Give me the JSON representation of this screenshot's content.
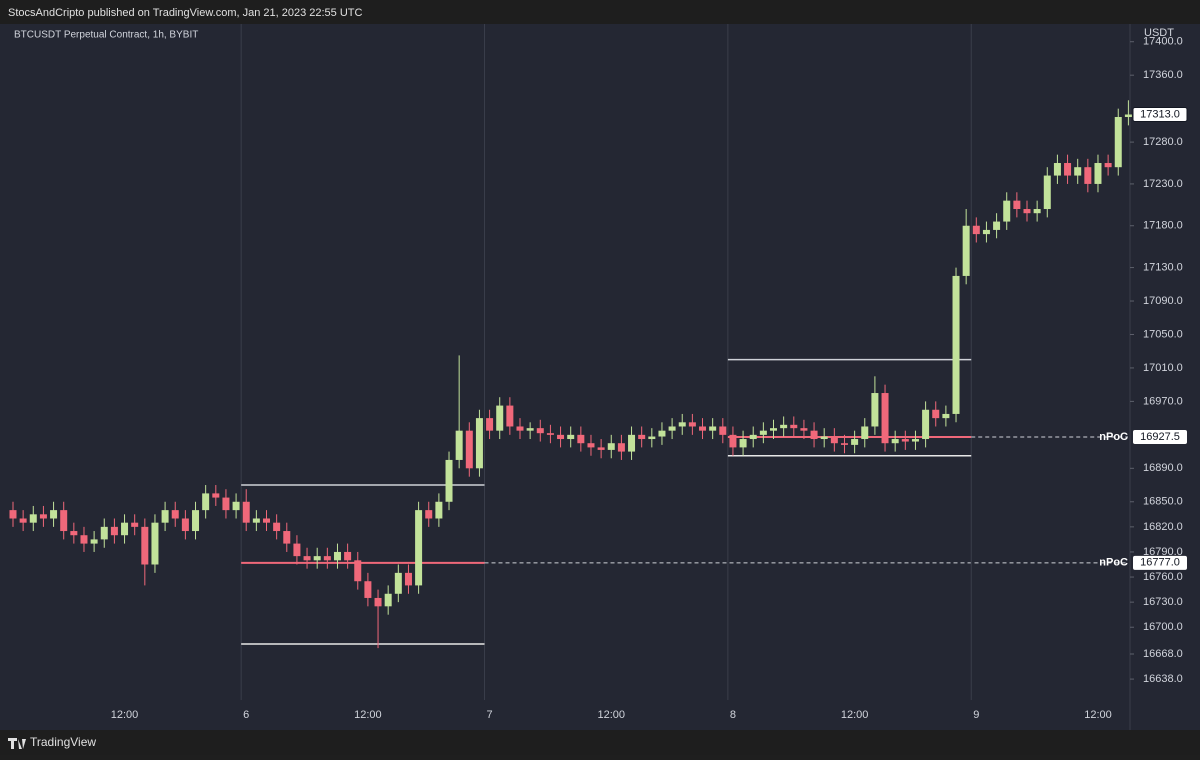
{
  "header": {
    "text": "StocsAndCripto published on TradingView.com, Jan 21, 2023 22:55 UTC"
  },
  "footer": {
    "brand": "TradingView"
  },
  "chart_data": {
    "type": "candlestick",
    "title": "BTCUSDT Perpetual Contract, 1h, BYBIT",
    "y_axis_label": "USDT",
    "categories": [
      null,
      null,
      null,
      null,
      null,
      null,
      null,
      null,
      null,
      null,
      null,
      "12:00",
      null,
      null,
      null,
      null,
      null,
      null,
      null,
      null,
      null,
      null,
      null,
      "6",
      null,
      null,
      null,
      null,
      null,
      null,
      null,
      null,
      null,
      null,
      null,
      "12:00",
      null,
      null,
      null,
      null,
      null,
      null,
      null,
      null,
      null,
      null,
      null,
      "7",
      null,
      null,
      null,
      null,
      null,
      null,
      null,
      null,
      null,
      null,
      null,
      "12:00",
      null,
      null,
      null,
      null,
      null,
      null,
      null,
      null,
      null,
      null,
      null,
      "8",
      null,
      null,
      null,
      null,
      null,
      null,
      null,
      null,
      null,
      null,
      null,
      "12:00",
      null,
      null,
      null,
      null,
      null,
      null,
      null,
      null,
      null,
      null,
      null,
      "9",
      null,
      null,
      null,
      null,
      null,
      null,
      null,
      null,
      null,
      null,
      null,
      "12:00",
      null,
      null,
      null
    ],
    "open": [
      16840,
      16830,
      16825,
      16835,
      16830,
      16840,
      16815,
      16810,
      16800,
      16805,
      16820,
      16810,
      16825,
      16820,
      16775,
      16825,
      16840,
      16830,
      16815,
      16840,
      16860,
      16855,
      16840,
      16850,
      16825,
      16830,
      16825,
      16815,
      16800,
      16785,
      16780,
      16785,
      16780,
      16790,
      16780,
      16755,
      16735,
      16725,
      16740,
      16765,
      16750,
      16840,
      16830,
      16850,
      16900,
      16935,
      16890,
      16950,
      16935,
      16965,
      16940,
      16935,
      16938,
      16932,
      16930,
      16925,
      16930,
      16920,
      16915,
      16912,
      16920,
      16910,
      16930,
      16925,
      16928,
      16935,
      16940,
      16945,
      16940,
      16935,
      16940,
      16930,
      16915,
      16925,
      16930,
      16935,
      16938,
      16942,
      16938,
      16935,
      16925,
      16928,
      16920,
      16918,
      16925,
      16940,
      16980,
      16920,
      16925,
      16922,
      16925,
      16960,
      16950,
      16955,
      17120,
      17180,
      17170,
      17175,
      17185,
      17210,
      17200,
      17195,
      17200,
      17240,
      17255,
      17240,
      17250,
      17230,
      17255,
      17250,
      17310
    ],
    "high": [
      16850,
      16840,
      16845,
      16845,
      16850,
      16850,
      16825,
      16820,
      16815,
      16830,
      16830,
      16835,
      16835,
      16830,
      16835,
      16850,
      16850,
      16840,
      16850,
      16870,
      16870,
      16865,
      16860,
      16865,
      16840,
      16840,
      16835,
      16825,
      16810,
      16795,
      16795,
      16795,
      16800,
      16800,
      16790,
      16765,
      16745,
      16750,
      16775,
      16775,
      16850,
      16850,
      16860,
      16910,
      17025,
      16945,
      16960,
      16960,
      16975,
      16975,
      16950,
      16945,
      16948,
      16942,
      16940,
      16940,
      16940,
      16930,
      16925,
      16930,
      16930,
      16940,
      16940,
      16938,
      16945,
      16950,
      16955,
      16955,
      16950,
      16950,
      16950,
      16940,
      16935,
      16940,
      16945,
      16948,
      16952,
      16952,
      16948,
      16945,
      16938,
      16938,
      16930,
      16935,
      16950,
      17000,
      16990,
      16935,
      16935,
      16935,
      16970,
      16970,
      16965,
      17130,
      17200,
      17190,
      17185,
      17195,
      17220,
      17220,
      17210,
      17210,
      17250,
      17265,
      17265,
      17260,
      17260,
      17265,
      17265,
      17320,
      17330
    ],
    "low": [
      16820,
      16815,
      16815,
      16820,
      16820,
      16805,
      16800,
      16790,
      16790,
      16795,
      16800,
      16800,
      16810,
      16750,
      16765,
      16815,
      16820,
      16805,
      16805,
      16830,
      16845,
      16830,
      16830,
      16815,
      16815,
      16815,
      16805,
      16790,
      16775,
      16770,
      16770,
      16770,
      16770,
      16770,
      16745,
      16725,
      16675,
      16715,
      16730,
      16740,
      16740,
      16820,
      16820,
      16840,
      16890,
      16880,
      16880,
      16925,
      16925,
      16930,
      16925,
      16925,
      16922,
      16920,
      16915,
      16915,
      16910,
      16905,
      16902,
      16902,
      16900,
      16900,
      16915,
      16915,
      16918,
      16925,
      16930,
      16930,
      16925,
      16925,
      16920,
      16905,
      16905,
      16915,
      16920,
      16925,
      16928,
      16928,
      16925,
      16915,
      16915,
      16910,
      16908,
      16908,
      16915,
      16930,
      16910,
      16910,
      16912,
      16912,
      16915,
      16940,
      16940,
      16945,
      17110,
      17160,
      17160,
      17165,
      17175,
      17190,
      17185,
      17185,
      17190,
      17230,
      17230,
      17230,
      17220,
      17220,
      17240,
      17240,
      17300
    ],
    "close": [
      16830,
      16825,
      16835,
      16830,
      16840,
      16815,
      16810,
      16800,
      16805,
      16820,
      16810,
      16825,
      16820,
      16775,
      16825,
      16840,
      16830,
      16815,
      16840,
      16860,
      16855,
      16840,
      16850,
      16825,
      16830,
      16825,
      16815,
      16800,
      16785,
      16780,
      16785,
      16780,
      16790,
      16780,
      16755,
      16735,
      16725,
      16740,
      16765,
      16750,
      16840,
      16830,
      16850,
      16900,
      16935,
      16890,
      16950,
      16935,
      16965,
      16940,
      16935,
      16938,
      16932,
      16930,
      16925,
      16930,
      16920,
      16915,
      16912,
      16920,
      16910,
      16930,
      16925,
      16928,
      16935,
      16940,
      16945,
      16940,
      16935,
      16940,
      16930,
      16915,
      16925,
      16930,
      16935,
      16938,
      16942,
      16938,
      16935,
      16925,
      16928,
      16920,
      16918,
      16925,
      16940,
      16980,
      16920,
      16925,
      16922,
      16925,
      16960,
      16950,
      16955,
      17120,
      17180,
      17170,
      17175,
      17185,
      17210,
      17200,
      17195,
      17200,
      17240,
      17255,
      17240,
      17250,
      17230,
      17255,
      17250,
      17310,
      17313
    ],
    "up_color": "#c2e29a",
    "down_color": "#f0687a",
    "ylim": [
      16613,
      17420
    ],
    "yticks": [
      {
        "value": 17400,
        "label": "17400.0"
      },
      {
        "value": 17360,
        "label": "17360.0"
      },
      {
        "value": 17280,
        "label": "17280.0"
      },
      {
        "value": 17230,
        "label": "17230.0"
      },
      {
        "value": 17180,
        "label": "17180.0"
      },
      {
        "value": 17130,
        "label": "17130.0"
      },
      {
        "value": 17090,
        "label": "17090.0"
      },
      {
        "value": 17050,
        "label": "17050.0"
      },
      {
        "value": 17010,
        "label": "17010.0"
      },
      {
        "value": 16970,
        "label": "16970.0"
      },
      {
        "value": 16890,
        "label": "16890.0"
      },
      {
        "value": 16850,
        "label": "16850.0"
      },
      {
        "value": 16820,
        "label": "16820.0"
      },
      {
        "value": 16790,
        "label": "16790.0"
      },
      {
        "value": 16760,
        "label": "16760.0"
      },
      {
        "value": 16730,
        "label": "16730.0"
      },
      {
        "value": 16700,
        "label": "16700.0"
      },
      {
        "value": 16668,
        "label": "16668.0"
      },
      {
        "value": 16638,
        "label": "16638.0"
      }
    ],
    "last_price": {
      "value": 17313,
      "label": "17313.0"
    },
    "profiles": [
      {
        "start": 23,
        "end": 46,
        "vah": 16870,
        "val": 16680,
        "poc": {
          "value": 16777,
          "label": "16777.0"
        },
        "poc_name": "nPoC"
      },
      {
        "start": 71,
        "end": 94,
        "vah": 17020,
        "val": 16905,
        "poc": {
          "value": 16927.5,
          "label": "16927.5"
        },
        "poc_name": "nPoC"
      }
    ]
  }
}
